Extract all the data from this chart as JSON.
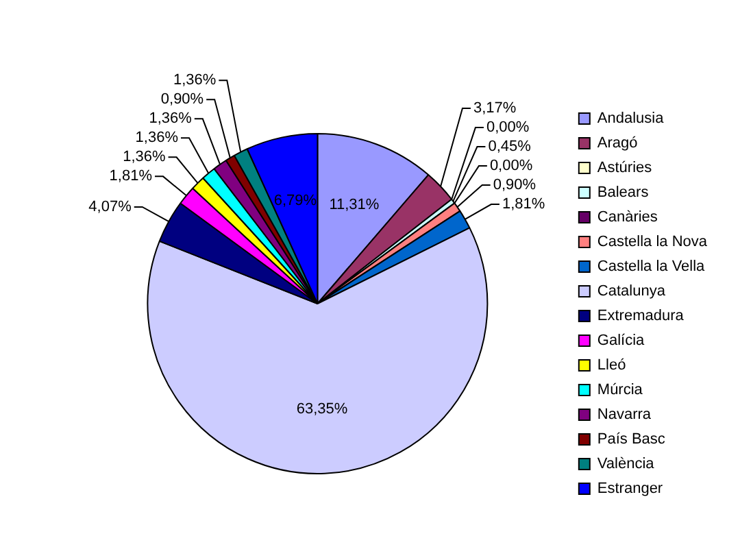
{
  "chart_data": {
    "type": "pie",
    "categories": [
      "Andalusia",
      "Aragó",
      "Astúries",
      "Balears",
      "Canàries",
      "Castella la Nova",
      "Castella la Vella",
      "Catalunya",
      "Extremadura",
      "Galícia",
      "Lleó",
      "Múrcia",
      "Navarra",
      "País Basc",
      "València",
      "Estranger"
    ],
    "values": [
      11.31,
      3.17,
      0.0,
      0.45,
      0.0,
      0.9,
      1.81,
      63.35,
      4.07,
      1.81,
      1.36,
      1.36,
      1.36,
      0.9,
      1.36,
      6.79
    ],
    "value_labels": [
      "11,31%",
      "3,17%",
      "0,00%",
      "0,45%",
      "0,00%",
      "0,90%",
      "1,81%",
      "63,35%",
      "4,07%",
      "1,81%",
      "1,36%",
      "1,36%",
      "1,36%",
      "0,90%",
      "1,36%",
      "6,79%"
    ],
    "colors": [
      "#9999ff",
      "#993366",
      "#ffffcc",
      "#ccffff",
      "#660066",
      "#ff8080",
      "#0066cc",
      "#ccccff",
      "#000080",
      "#ff00ff",
      "#ffff00",
      "#00ffff",
      "#800080",
      "#800000",
      "#008080",
      "#0000ff"
    ],
    "legend": "right"
  }
}
